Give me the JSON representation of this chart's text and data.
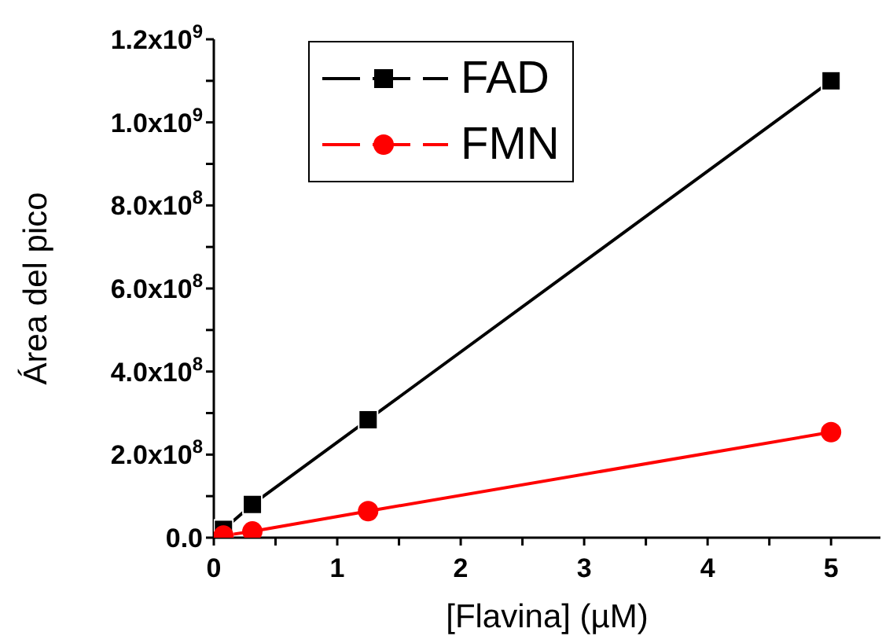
{
  "chart_data": {
    "type": "line",
    "xlabel": "[Flavina] (µM)",
    "ylabel": "Área del pico",
    "xlim": [
      0,
      5.4
    ],
    "xticks": [
      0,
      {
        "value": 0.5,
        "label": null
      },
      1,
      {
        "value": 1.5,
        "label": null
      },
      2,
      {
        "value": 2.5,
        "label": null
      },
      3,
      {
        "value": 3.5,
        "label": null
      },
      4,
      {
        "value": 4.5,
        "label": null
      },
      5
    ],
    "ylim": [
      0,
      1200000000
    ],
    "yticks": [
      {
        "value": 0,
        "label": "0.0"
      },
      {
        "value": 100000000,
        "label": null
      },
      {
        "value": 200000000,
        "label": "2.0x10$^{8}$"
      },
      {
        "value": 300000000,
        "label": null
      },
      {
        "value": 400000000,
        "label": "4.0x10$^{8}$"
      },
      {
        "value": 500000000,
        "label": null
      },
      {
        "value": 600000000,
        "label": "6.0x10$^{8}$"
      },
      {
        "value": 700000000,
        "label": null
      },
      {
        "value": 800000000,
        "label": "8.0x10$^{8}$"
      },
      {
        "value": 900000000,
        "label": null
      },
      {
        "value": 1000000000,
        "label": "1.0x10$^{9}$"
      },
      {
        "value": 1100000000,
        "label": null
      },
      {
        "value": 1200000000,
        "label": "1.2x10$^{9}$"
      }
    ],
    "legend": "top",
    "grid": false,
    "line_style": "solid",
    "series": [
      {
        "name": "FAD",
        "color": "#000000",
        "marker": "square",
        "x": [
          0.078,
          0.3125,
          1.25,
          5
        ],
        "values": [
          20000000,
          80000000,
          284000000,
          1100000000
        ]
      },
      {
        "name": "FMN",
        "color": "#ff0000",
        "marker": "circle",
        "x": [
          0.078,
          0.3125,
          1.25,
          5
        ],
        "values": [
          5000000,
          15000000,
          64000000,
          254000000
        ]
      }
    ]
  }
}
